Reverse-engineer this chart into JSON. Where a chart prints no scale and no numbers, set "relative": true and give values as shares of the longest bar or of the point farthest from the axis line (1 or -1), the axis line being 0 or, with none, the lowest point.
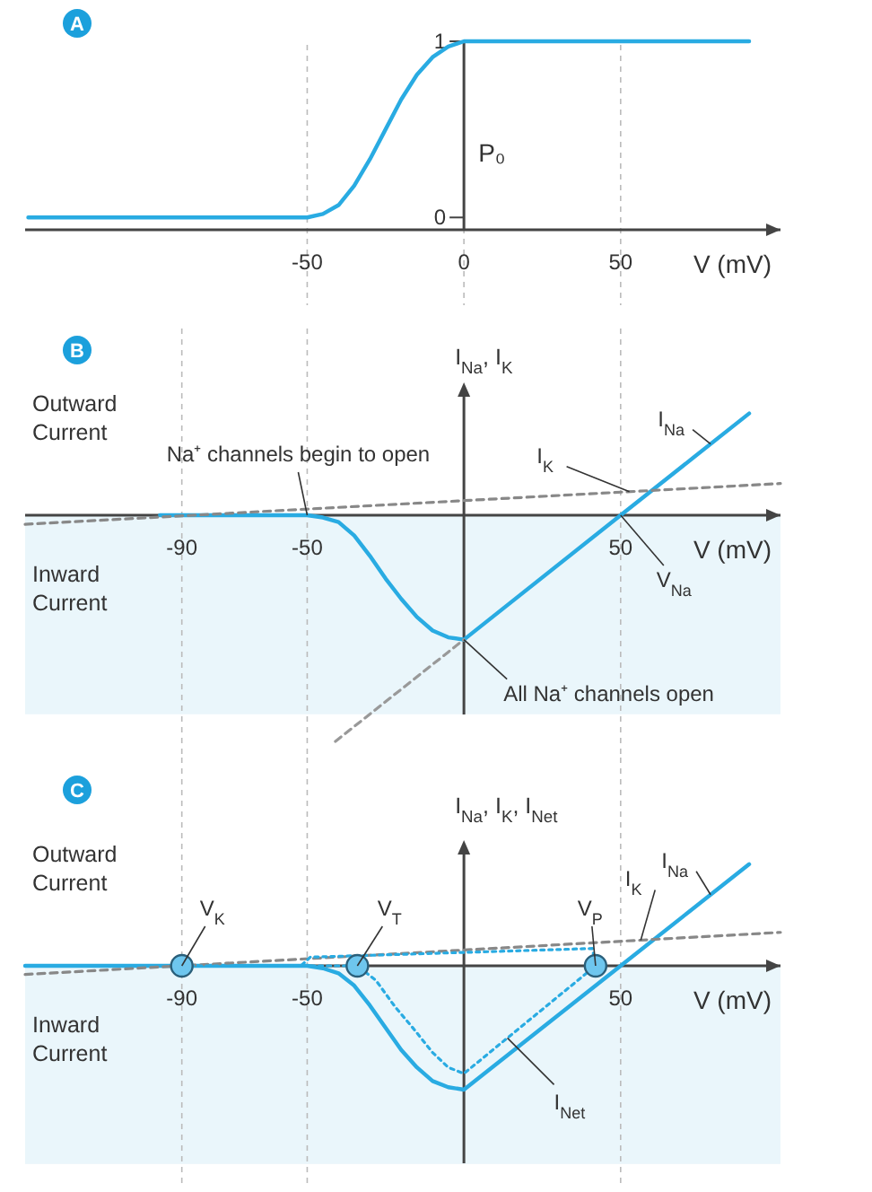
{
  "chart_data": [
    {
      "type": "line",
      "title": "A",
      "xlabel": "V (mV)",
      "ylabel": "P₀",
      "xlim": [
        -140,
        101
      ],
      "ylim": [
        -0.07,
        1
      ],
      "xticks": [
        -50,
        0,
        50
      ],
      "yticks": [
        0,
        1
      ],
      "grid": "x",
      "series": [
        {
          "color": "#29abe2",
          "x": [
            -139,
            -50,
            -45,
            -40,
            -35,
            -30,
            -25,
            -20,
            -15,
            -10,
            -5,
            0,
            91
          ],
          "values": [
            0,
            0,
            0.02,
            0.07,
            0.18,
            0.33,
            0.5,
            0.67,
            0.81,
            0.91,
            0.97,
            1,
            1
          ]
        }
      ]
    },
    {
      "type": "line",
      "title": "B",
      "xlabel": "V (mV)",
      "ylabel": "I$_{Na}$, I$_{K}$",
      "relative": true,
      "xlim": [
        -140,
        101
      ],
      "xticks": [
        -90,
        -50,
        50
      ],
      "grid": "x",
      "bands": [
        {
          "axis": "y",
          "from": -0.88,
          "to": 0,
          "color": "#eaf6fb"
        }
      ],
      "annotations": [
        "Outward Current",
        "Inward Current",
        {
          "text": "Na⁺ channels begin to open",
          "x": -50,
          "y": 0
        },
        {
          "text": "All Na⁺ channels open",
          "x": 0,
          "y": -0.55
        },
        {
          "text": "V$_{Na}$",
          "x": 50,
          "y": 0
        }
      ],
      "series": [
        {
          "name": "I$_{Na}$",
          "color": "#29abe2",
          "x": [
            -97,
            -50,
            -45,
            -40,
            -35,
            -30,
            -25,
            -20,
            -15,
            -10,
            -5,
            0,
            50,
            91
          ],
          "values": [
            0,
            0,
            -0.01,
            -0.03,
            -0.09,
            -0.18,
            -0.28,
            -0.37,
            -0.45,
            -0.51,
            -0.54,
            -0.55,
            0,
            0.45
          ]
        },
        {
          "name": "I$_{K}$",
          "color": "#888888",
          "line_style": "dashed",
          "x": [
            -140,
            101
          ],
          "values": [
            -0.04,
            0.14
          ]
        },
        {
          "color": "#999999",
          "line_style": "dashed",
          "x": [
            -41,
            0
          ],
          "values": [
            -1,
            -0.55
          ]
        }
      ]
    },
    {
      "type": "line",
      "title": "C",
      "xlabel": "V (mV)",
      "ylabel": "I$_{Na}$, I$_{K}$, I$_{Net}$",
      "relative": true,
      "xlim": [
        -140,
        101
      ],
      "xticks": [
        -90,
        -50,
        50
      ],
      "grid": "x",
      "bands": [
        {
          "axis": "y",
          "from": -1.6,
          "to": 0,
          "color": "#eaf6fb"
        }
      ],
      "annotations": [
        "Outward Current",
        "Inward Current",
        {
          "text": "V$_{K}$",
          "x": -90,
          "y": 0
        },
        {
          "text": "V$_{T}$",
          "x": -34,
          "y": 0
        },
        {
          "text": "V$_{P}$",
          "x": 42,
          "y": 0
        }
      ],
      "series": [
        {
          "name": "I$_{Na}$",
          "color": "#29abe2",
          "x": [
            -140,
            -50,
            -45,
            -40,
            -35,
            -30,
            -25,
            -20,
            -15,
            -10,
            -5,
            0,
            50,
            91
          ],
          "values": [
            0,
            0,
            -0.02,
            -0.06,
            -0.16,
            -0.32,
            -0.5,
            -0.68,
            -0.82,
            -0.93,
            -0.98,
            -1,
            0,
            0.82
          ]
        },
        {
          "name": "I$_{K}$",
          "color": "#888888",
          "line_style": "dashed",
          "x": [
            -140,
            101
          ],
          "values": [
            -0.07,
            0.27
          ]
        },
        {
          "name": "I$_{Net}$",
          "color": "#29abe2",
          "line_style": "dotted",
          "x": [
            -90,
            -34,
            -28,
            -22,
            -16,
            -10,
            -5,
            0,
            42,
            41,
            -49,
            -52
          ],
          "values": [
            0,
            0,
            -0.12,
            -0.33,
            -0.51,
            -0.7,
            -0.82,
            -0.87,
            0,
            0.14,
            0.07,
            0
          ]
        },
        {
          "type": "scatter",
          "marker": "circle",
          "color": "#6ec6ee",
          "x": [
            -90,
            -34,
            42
          ],
          "values": [
            0,
            0,
            0
          ]
        }
      ]
    }
  ]
}
